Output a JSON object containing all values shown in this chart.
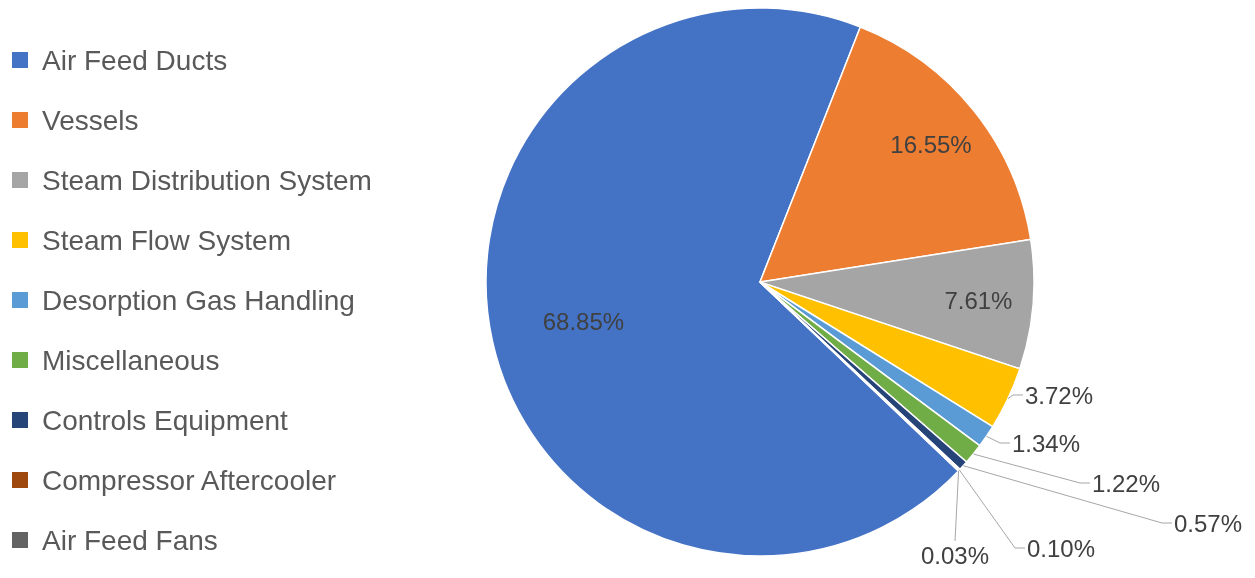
{
  "chart_data": {
    "type": "pie",
    "categories": [
      "Air Feed Ducts",
      "Vessels",
      "Steam Distribution System",
      "Steam Flow System",
      "Desorption Gas Handling",
      "Miscellaneous",
      "Controls Equipment",
      "Compressor Aftercooler",
      "Air Feed Fans"
    ],
    "values": [
      68.85,
      16.55,
      7.61,
      3.72,
      1.34,
      1.22,
      0.57,
      0.1,
      0.03
    ],
    "value_labels": [
      "68.85%",
      "16.55%",
      "7.61%",
      "3.72%",
      "1.34%",
      "1.22%",
      "0.57%",
      "0.10%",
      "0.03%"
    ],
    "colors": [
      "#4472c4",
      "#ed7d31",
      "#a5a5a5",
      "#ffc000",
      "#5b9bd5",
      "#70ad47",
      "#264478",
      "#9e480e",
      "#636363"
    ],
    "legend": "left"
  }
}
